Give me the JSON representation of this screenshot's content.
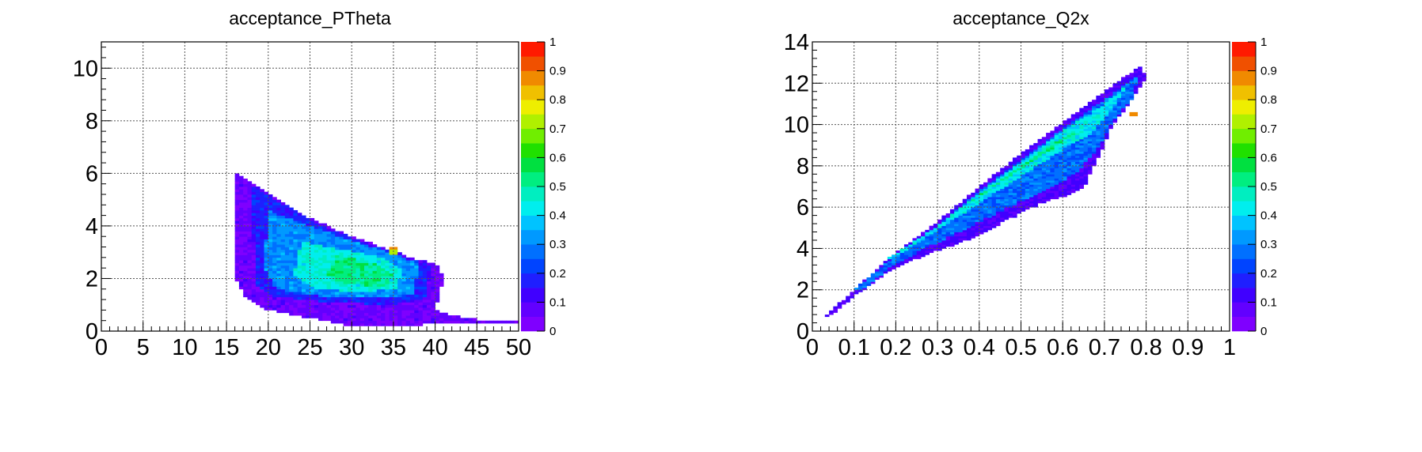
{
  "chart_data": [
    {
      "type": "heatmap",
      "title": "acceptance_PTheta",
      "xlabel": "",
      "ylabel": "",
      "xlim": [
        0,
        50
      ],
      "ylim": [
        0,
        11
      ],
      "zlim": [
        0,
        1
      ],
      "x_ticks": [
        "0",
        "5",
        "10",
        "15",
        "20",
        "25",
        "30",
        "35",
        "40",
        "45",
        "50"
      ],
      "y_ticks": [
        "0",
        "2",
        "4",
        "6",
        "8",
        "10"
      ],
      "z_ticks": [
        "0",
        "0.1",
        "0.2",
        "0.3",
        "0.4",
        "0.5",
        "0.6",
        "0.7",
        "0.8",
        "0.9",
        "1"
      ],
      "grid": true,
      "colorbar": "right",
      "bin_size": [
        0.5,
        0.1
      ],
      "regions": [
        {
          "poly": [
            [
              16,
              6.1
            ],
            [
              20,
              5.3
            ],
            [
              25,
              4.3
            ],
            [
              30,
              3.6
            ],
            [
              35,
              3.05
            ],
            [
              37,
              2.8
            ],
            [
              40,
              2.6
            ],
            [
              41,
              2.1
            ],
            [
              40.5,
              1.3
            ],
            [
              40,
              0.8
            ],
            [
              42,
              0.6
            ],
            [
              45,
              0.45
            ],
            [
              50,
              0.35
            ],
            [
              50,
              0.25
            ],
            [
              42,
              0.3
            ],
            [
              35,
              0.2
            ],
            [
              30,
              0.2
            ],
            [
              25,
              0.5
            ],
            [
              20,
              0.8
            ],
            [
              17.5,
              1.2
            ],
            [
              16,
              2.1
            ]
          ],
          "value": 0.06
        },
        {
          "poly": [
            [
              18,
              5.6
            ],
            [
              22,
              4.8
            ],
            [
              26,
              4.05
            ],
            [
              31,
              3.45
            ],
            [
              36,
              2.85
            ],
            [
              39.5,
              2.5
            ],
            [
              39,
              1.3
            ],
            [
              35,
              1.0
            ],
            [
              28,
              1.1
            ],
            [
              21,
              1.3
            ],
            [
              18.5,
              1.7
            ]
          ],
          "value": 0.17
        },
        {
          "poly": [
            [
              20,
              4.6
            ],
            [
              25,
              4.0
            ],
            [
              30,
              3.45
            ],
            [
              35,
              2.95
            ],
            [
              38,
              2.6
            ],
            [
              37.5,
              1.4
            ],
            [
              33,
              1.25
            ],
            [
              26,
              1.35
            ],
            [
              21,
              1.6
            ],
            [
              19.5,
              2.4
            ]
          ],
          "value": 0.31
        },
        {
          "poly": [
            [
              24,
              3.4
            ],
            [
              29,
              3.1
            ],
            [
              34,
              2.8
            ],
            [
              36,
              2.4
            ],
            [
              35.5,
              1.6
            ],
            [
              31,
              1.5
            ],
            [
              26,
              1.6
            ],
            [
              23,
              2.1
            ]
          ],
          "value": 0.44
        },
        {
          "poly": [
            [
              28,
              2.9
            ],
            [
              33,
              2.6
            ],
            [
              35,
              2.2
            ],
            [
              34,
              1.7
            ],
            [
              29,
              1.8
            ],
            [
              27,
              2.2
            ]
          ],
          "value": 0.52
        }
      ],
      "hot_spots": [
        {
          "x": 34.5,
          "y": 3.1,
          "value": 0.85
        },
        {
          "x": 34.8,
          "y": 3.0,
          "value": 0.72
        }
      ]
    },
    {
      "type": "heatmap",
      "title": "acceptance_Q2x",
      "xlabel": "",
      "ylabel": "",
      "xlim": [
        0,
        1
      ],
      "ylim": [
        0,
        14
      ],
      "zlim": [
        0,
        1
      ],
      "x_ticks": [
        "0",
        "0.1",
        "0.2",
        "0.3",
        "0.4",
        "0.5",
        "0.6",
        "0.7",
        "0.8",
        "0.9",
        "1"
      ],
      "y_ticks": [
        "0",
        "2",
        "4",
        "6",
        "8",
        "10",
        "12",
        "14"
      ],
      "z_ticks": [
        "0",
        "0.1",
        "0.2",
        "0.3",
        "0.4",
        "0.5",
        "0.6",
        "0.7",
        "0.8",
        "0.9",
        "1"
      ],
      "grid": true,
      "colorbar": "right",
      "bin_size": [
        0.01,
        0.1
      ],
      "regions": [
        {
          "poly": [
            [
              0.03,
              0.7
            ],
            [
              0.1,
              2.0
            ],
            [
              0.2,
              3.8
            ],
            [
              0.3,
              5.3
            ],
            [
              0.4,
              7.0
            ],
            [
              0.5,
              8.6
            ],
            [
              0.6,
              10.1
            ],
            [
              0.7,
              11.6
            ],
            [
              0.79,
              12.9
            ],
            [
              0.8,
              12.2
            ],
            [
              0.76,
              11.0
            ],
            [
              0.72,
              10.0
            ],
            [
              0.7,
              9.0
            ],
            [
              0.67,
              7.8
            ],
            [
              0.65,
              6.9
            ],
            [
              0.6,
              6.5
            ],
            [
              0.55,
              6.2
            ],
            [
              0.5,
              5.7
            ],
            [
              0.45,
              5.2
            ],
            [
              0.4,
              4.6
            ],
            [
              0.3,
              3.9
            ],
            [
              0.2,
              3.1
            ],
            [
              0.1,
              1.7
            ],
            [
              0.04,
              0.7
            ]
          ],
          "value": 0.1
        },
        {
          "poly": [
            [
              0.1,
              2.0
            ],
            [
              0.2,
              3.7
            ],
            [
              0.3,
              5.1
            ],
            [
              0.4,
              6.8
            ],
            [
              0.5,
              8.3
            ],
            [
              0.6,
              9.8
            ],
            [
              0.7,
              11.2
            ],
            [
              0.78,
              12.4
            ],
            [
              0.77,
              11.3
            ],
            [
              0.72,
              10.2
            ],
            [
              0.69,
              9.0
            ],
            [
              0.64,
              7.8
            ],
            [
              0.58,
              7.0
            ],
            [
              0.5,
              6.3
            ],
            [
              0.4,
              5.3
            ],
            [
              0.3,
              4.3
            ],
            [
              0.2,
              3.3
            ],
            [
              0.12,
              2.0
            ]
          ],
          "value": 0.27
        },
        {
          "poly": [
            [
              0.18,
              3.5
            ],
            [
              0.3,
              5.1
            ],
            [
              0.4,
              6.7
            ],
            [
              0.5,
              8.2
            ],
            [
              0.6,
              9.7
            ],
            [
              0.7,
              11.0
            ],
            [
              0.76,
              12.0
            ],
            [
              0.72,
              10.8
            ],
            [
              0.67,
              9.6
            ],
            [
              0.6,
              8.8
            ],
            [
              0.5,
              7.5
            ],
            [
              0.4,
              6.2
            ],
            [
              0.3,
              4.9
            ],
            [
              0.2,
              3.6
            ]
          ],
          "value": 0.42
        },
        {
          "poly": [
            [
              0.3,
              5.2
            ],
            [
              0.4,
              6.6
            ],
            [
              0.5,
              8.0
            ],
            [
              0.58,
              9.2
            ],
            [
              0.63,
              9.6
            ],
            [
              0.55,
              8.5
            ],
            [
              0.45,
              7.2
            ],
            [
              0.36,
              6.0
            ]
          ],
          "value": 0.53
        }
      ],
      "hot_spots": [
        {
          "x": 0.765,
          "y": 10.5,
          "value": 0.86
        }
      ]
    }
  ]
}
